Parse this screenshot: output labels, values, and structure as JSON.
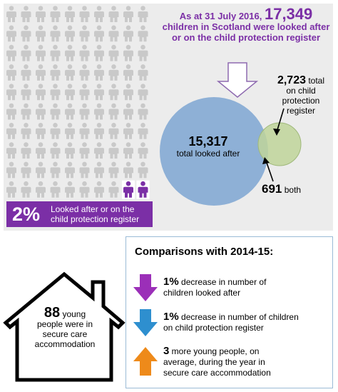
{
  "headline": {
    "prefix": "As at 31 July 2016, ",
    "total": "17,349",
    "suffix": "children in Scotland were looked after or on the child protection register"
  },
  "people_icons": {
    "total": 100,
    "highlighted": 2,
    "icon_name": "person-icon",
    "color_default": "#c9c9c9",
    "color_highlight": "#7b2fa6"
  },
  "stat_banner": {
    "percent": "2%",
    "text": "Looked after or on the child protection register"
  },
  "venn": {
    "looked_after_value": "15,317",
    "looked_after_label": "total looked after",
    "cp_value": "2,723",
    "cp_label_1": "total",
    "cp_label_2": "on child",
    "cp_label_3": "protection",
    "cp_label_4": "register",
    "both_value": "691",
    "both_label": "both",
    "color_looked_after": "#8eb0d6",
    "color_cp": "#bfd59a"
  },
  "house": {
    "value": "88",
    "text_1": " young",
    "text_2": "people were in",
    "text_3": "secure care",
    "text_4": "accommodation"
  },
  "comparisons": {
    "title": "Comparisons with 2014-15:",
    "items": [
      {
        "bold": "1%",
        "text_1": " decrease in number of",
        "text_2": "children looked after",
        "icon": "arrow-down-icon",
        "color": "#9b2fb8"
      },
      {
        "bold": "1%",
        "text_1": " decrease in number of children",
        "text_2": "on child protection register",
        "icon": "arrow-down-icon",
        "color": "#2e8fcf"
      },
      {
        "bold": "3",
        "text_1": " more young people, on",
        "text_2": "average, during the year in",
        "text_3": "secure care accommodation",
        "icon": "arrow-up-icon",
        "color": "#ee8a1a"
      }
    ]
  }
}
